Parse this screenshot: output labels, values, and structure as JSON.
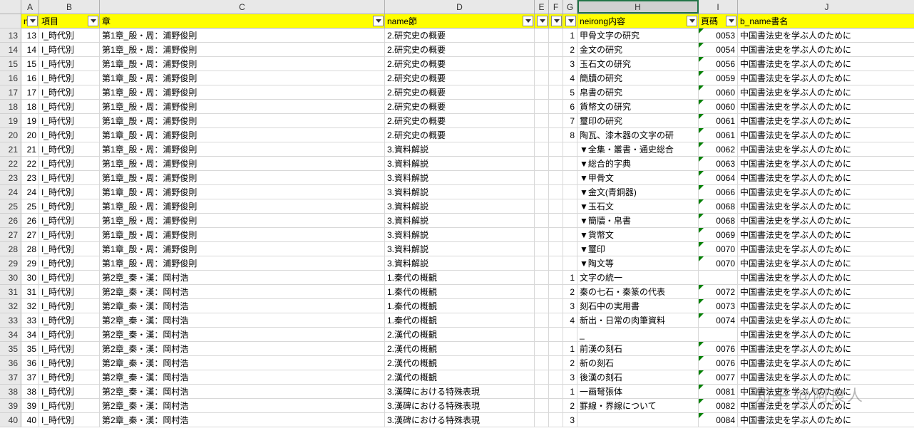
{
  "columns": {
    "letters": [
      "A",
      "B",
      "C",
      "D",
      "E",
      "F",
      "G",
      "H",
      "I",
      "J"
    ],
    "widths": [
      25,
      85,
      400,
      210,
      20,
      20,
      20,
      170,
      55,
      250
    ],
    "selected": "H"
  },
  "header_row": {
    "A": "n",
    "B": "項目",
    "C": "章",
    "D": "name節",
    "E": "",
    "F": "",
    "G": "",
    "H": "neirong内容",
    "I": "頁碼",
    "J": "b_name書名",
    "filters": [
      "A",
      "B",
      "C",
      "D",
      "E",
      "F",
      "G",
      "H",
      "I"
    ]
  },
  "rows": [
    {
      "r": 13,
      "A": "I_時代別",
      "B": "第1章_殷・周：浦野俊則",
      "C": "2.研究史の概要",
      "G": "1",
      "H": "甲骨文字の研究",
      "I": "0053",
      "J": "中国書法史を学ぶ人のために"
    },
    {
      "r": 14,
      "A": "I_時代別",
      "B": "第1章_殷・周：浦野俊則",
      "C": "2.研究史の概要",
      "G": "2",
      "H": "金文の研究",
      "I": "0054",
      "J": "中国書法史を学ぶ人のために"
    },
    {
      "r": 15,
      "A": "I_時代別",
      "B": "第1章_殷・周：浦野俊則",
      "C": "2.研究史の概要",
      "G": "3",
      "H": "玉石文の研究",
      "I": "0056",
      "J": "中国書法史を学ぶ人のために"
    },
    {
      "r": 16,
      "A": "I_時代別",
      "B": "第1章_殷・周：浦野俊則",
      "C": "2.研究史の概要",
      "G": "4",
      "H": "簡牘の研究",
      "I": "0059",
      "J": "中国書法史を学ぶ人のために"
    },
    {
      "r": 17,
      "A": "I_時代別",
      "B": "第1章_殷・周：浦野俊則",
      "C": "2.研究史の概要",
      "G": "5",
      "H": "帛書の研究",
      "I": "0060",
      "J": "中国書法史を学ぶ人のために"
    },
    {
      "r": 18,
      "A": "I_時代別",
      "B": "第1章_殷・周：浦野俊則",
      "C": "2.研究史の概要",
      "G": "6",
      "H": "貨幣文の研究",
      "I": "0060",
      "J": "中国書法史を学ぶ人のために"
    },
    {
      "r": 19,
      "A": "I_時代別",
      "B": "第1章_殷・周：浦野俊則",
      "C": "2.研究史の概要",
      "G": "7",
      "H": "璽印の研究",
      "I": "0061",
      "J": "中国書法史を学ぶ人のために"
    },
    {
      "r": 20,
      "A": "I_時代別",
      "B": "第1章_殷・周：浦野俊則",
      "C": "2.研究史の概要",
      "G": "8",
      "H": "陶瓦、漆木器の文字の研",
      "I": "0061",
      "J": "中国書法史を学ぶ人のために"
    },
    {
      "r": 21,
      "A": "I_時代別",
      "B": "第1章_殷・周：浦野俊則",
      "C": "3.資料解説",
      "G": "",
      "H": "▼全集・叢書・通史総合",
      "I": "0062",
      "J": "中国書法史を学ぶ人のために"
    },
    {
      "r": 22,
      "A": "I_時代別",
      "B": "第1章_殷・周：浦野俊則",
      "C": "3.資料解説",
      "G": "",
      "H": "▼総合的字典",
      "I": "0063",
      "J": "中国書法史を学ぶ人のために"
    },
    {
      "r": 23,
      "A": "I_時代別",
      "B": "第1章_殷・周：浦野俊則",
      "C": "3.資料解説",
      "G": "",
      "H": "▼甲骨文",
      "I": "0064",
      "J": "中国書法史を学ぶ人のために"
    },
    {
      "r": 24,
      "A": "I_時代別",
      "B": "第1章_殷・周：浦野俊則",
      "C": "3.資料解説",
      "G": "",
      "H": "▼金文(青銅器)",
      "I": "0066",
      "J": "中国書法史を学ぶ人のために"
    },
    {
      "r": 25,
      "A": "I_時代別",
      "B": "第1章_殷・周：浦野俊則",
      "C": "3.資料解説",
      "G": "",
      "H": "▼玉石文",
      "I": "0068",
      "J": "中国書法史を学ぶ人のために"
    },
    {
      "r": 26,
      "A": "I_時代別",
      "B": "第1章_殷・周：浦野俊則",
      "C": "3.資料解説",
      "G": "",
      "H": "▼簡牘・帛書",
      "I": "0068",
      "J": "中国書法史を学ぶ人のために"
    },
    {
      "r": 27,
      "A": "I_時代別",
      "B": "第1章_殷・周：浦野俊則",
      "C": "3.資料解説",
      "G": "",
      "H": "▼貨幣文",
      "I": "0069",
      "J": "中国書法史を学ぶ人のために"
    },
    {
      "r": 28,
      "A": "I_時代別",
      "B": "第1章_殷・周：浦野俊則",
      "C": "3.資料解説",
      "G": "",
      "H": "▼璽印",
      "I": "0070",
      "J": "中国書法史を学ぶ人のために"
    },
    {
      "r": 29,
      "A": "I_時代別",
      "B": "第1章_殷・周：浦野俊則",
      "C": "3.資料解説",
      "G": "",
      "H": "▼陶文等",
      "I": "0070",
      "J": "中国書法史を学ぶ人のために"
    },
    {
      "r": 30,
      "A": "I_時代別",
      "B": "第2章_秦・漢：岡村浩",
      "C": "1.秦代の概観",
      "G": "1",
      "H": "文字の統一",
      "I": "",
      "J": "中国書法史を学ぶ人のために"
    },
    {
      "r": 31,
      "A": "I_時代別",
      "B": "第2章_秦・漢：岡村浩",
      "C": "1.秦代の概観",
      "G": "2",
      "H": "秦の七石・秦篆の代表",
      "I": "0072",
      "J": "中国書法史を学ぶ人のために"
    },
    {
      "r": 32,
      "A": "I_時代別",
      "B": "第2章_秦・漢：岡村浩",
      "C": "1.秦代の概観",
      "G": "3",
      "H": "刻石中の実用書",
      "I": "0073",
      "J": "中国書法史を学ぶ人のために"
    },
    {
      "r": 33,
      "A": "I_時代別",
      "B": "第2章_秦・漢：岡村浩",
      "C": "1.秦代の概観",
      "G": "4",
      "H": "新出・日常の肉筆資料",
      "I": "0074",
      "J": "中国書法史を学ぶ人のために"
    },
    {
      "r": 34,
      "A": "I_時代別",
      "B": "第2章_秦・漢：岡村浩",
      "C": "2.漢代の概観",
      "G": "",
      "H": "_",
      "I": "",
      "J": "中国書法史を学ぶ人のために"
    },
    {
      "r": 35,
      "A": "I_時代別",
      "B": "第2章_秦・漢：岡村浩",
      "C": "2.漢代の概観",
      "G": "1",
      "H": "前漢の刻石",
      "I": "0076",
      "J": "中国書法史を学ぶ人のために"
    },
    {
      "r": 36,
      "A": "I_時代別",
      "B": "第2章_秦・漢：岡村浩",
      "C": "2.漢代の概観",
      "G": "2",
      "H": "新の刻石",
      "I": "0076",
      "J": "中国書法史を学ぶ人のために"
    },
    {
      "r": 37,
      "A": "I_時代別",
      "B": "第2章_秦・漢：岡村浩",
      "C": "2.漢代の概観",
      "G": "3",
      "H": "後漢の刻石",
      "I": "0077",
      "J": "中国書法史を学ぶ人のために"
    },
    {
      "r": 38,
      "A": "I_時代別",
      "B": "第2章_秦・漢：岡村浩",
      "C": "3.漢碑における特殊表現",
      "G": "1",
      "H": "一画弩張体",
      "I": "0081",
      "J": "中国書法史を学ぶ人のために"
    },
    {
      "r": 39,
      "A": "I_時代別",
      "B": "第2章_秦・漢：岡村浩",
      "C": "3.漢碑における特殊表現",
      "G": "2",
      "H": "罫線・界線について",
      "I": "0082",
      "J": "中国書法史を学ぶ人のために"
    },
    {
      "r": 40,
      "A": "I_時代別",
      "B": "第2章_秦・漢：岡村浩",
      "C": "3.漢碑における特殊表現",
      "G": "3",
      "H": "",
      "I": "0084",
      "J": "中国書法史を学ぶ人のために"
    }
  ],
  "watermark": "知乎 @阿良人"
}
